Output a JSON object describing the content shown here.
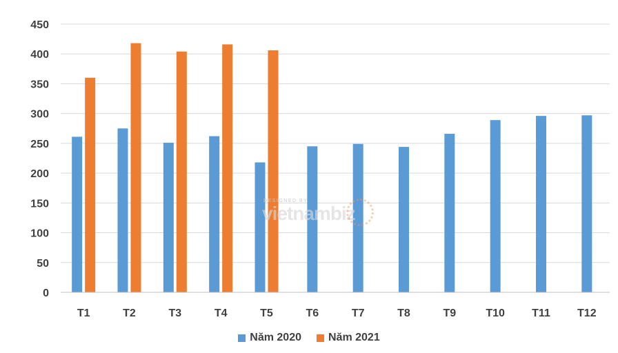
{
  "chart_data": {
    "type": "bar",
    "categories": [
      "T1",
      "T2",
      "T3",
      "T4",
      "T5",
      "T6",
      "T7",
      "T8",
      "T9",
      "T10",
      "T11",
      "T12"
    ],
    "series": [
      {
        "name": "Năm 2020",
        "color": "#5b9bd5",
        "values": [
          261,
          275,
          251,
          262,
          218,
          245,
          249,
          244,
          266,
          289,
          296,
          297
        ]
      },
      {
        "name": "Năm 2021",
        "color": "#ed7d31",
        "values": [
          360,
          418,
          404,
          416,
          406,
          null,
          null,
          null,
          null,
          null,
          null,
          null
        ]
      }
    ],
    "yticks": [
      0,
      50,
      100,
      150,
      200,
      250,
      300,
      350,
      400,
      450
    ],
    "ylim": [
      0,
      450
    ],
    "grid": true,
    "legend": "bottom",
    "gridline_color": "#d9d9d9",
    "axis_color": "#bfbfbf"
  },
  "legend": {
    "series1_label": "Năm 2020",
    "series2_label": "Năm 2021"
  },
  "watermark": {
    "top_text": "DESIGNED BY",
    "brand_text": "vietnambiz"
  }
}
